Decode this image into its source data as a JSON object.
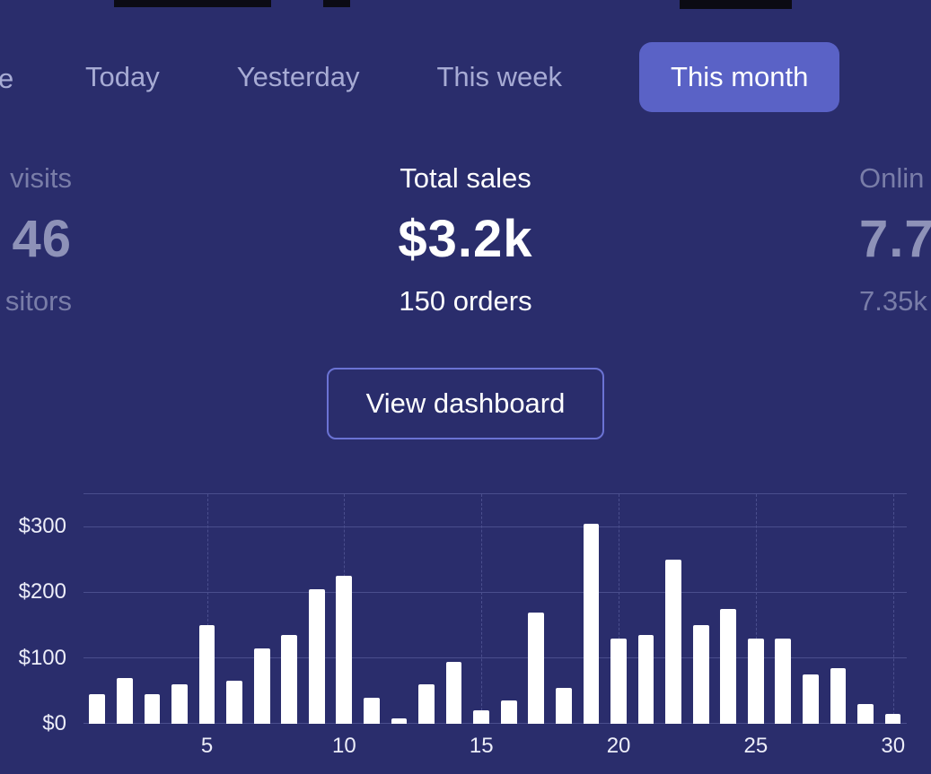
{
  "theme": {
    "background": "#2a2d6c",
    "active_tab_bg": "#5a62c6",
    "inactive_tab_text": "#a7abd4",
    "muted_label_text": "#797da8",
    "muted_value_text": "#8e92b8",
    "button_border": "#6b73d4",
    "grid_color": "#4a4e8d",
    "bar_color": "#ffffff"
  },
  "tabs": {
    "cropped_left_label_fragment": "e",
    "items": [
      {
        "label": "Today",
        "active": false
      },
      {
        "label": "Yesterday",
        "active": false
      },
      {
        "label": "This week",
        "active": false
      },
      {
        "label": "This month",
        "active": true
      }
    ]
  },
  "stats": {
    "left": {
      "label_fragment": "visits",
      "value_fragment": "46",
      "sub_fragment": "sitors"
    },
    "center": {
      "label": "Total sales",
      "value": "$3.2k",
      "sub": "150 orders"
    },
    "right": {
      "label_fragment": "Onlin",
      "value_fragment": "7.7",
      "sub_fragment": "7.35k"
    }
  },
  "button": {
    "label": "View dashboard"
  },
  "chart_data": {
    "type": "bar",
    "title": "",
    "xlabel": "",
    "ylabel": "",
    "x": [
      1,
      2,
      3,
      4,
      5,
      6,
      7,
      8,
      9,
      10,
      11,
      12,
      13,
      14,
      15,
      16,
      17,
      18,
      19,
      20,
      21,
      22,
      23,
      24,
      25,
      26,
      27,
      28,
      29,
      30
    ],
    "values": [
      45,
      70,
      45,
      60,
      150,
      65,
      115,
      135,
      205,
      225,
      40,
      8,
      60,
      95,
      20,
      35,
      170,
      55,
      305,
      130,
      135,
      250,
      150,
      175,
      130,
      130,
      75,
      85,
      30,
      15
    ],
    "y_ticks": [
      "$0",
      "$100",
      "$200",
      "$300"
    ],
    "y_tick_values": [
      0,
      100,
      200,
      300
    ],
    "x_ticks": [
      5,
      10,
      15,
      20,
      25,
      30
    ],
    "ylim": [
      0,
      350
    ],
    "grid": true,
    "legend": false,
    "bar_color": "#ffffff"
  }
}
